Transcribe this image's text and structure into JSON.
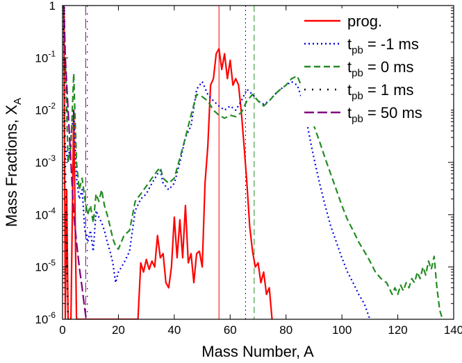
{
  "chart_data": {
    "type": "line",
    "xlabel": "Mass Number, A",
    "ylabel": "Mass Fractions, X",
    "ylabel_sub": "A",
    "xlim": [
      0,
      140
    ],
    "ylim": [
      1e-06,
      1
    ],
    "yscale": "log",
    "x_ticks": [
      0,
      20,
      40,
      60,
      80,
      100,
      120,
      140
    ],
    "y_ticks": [
      {
        "value": 1e-06,
        "base": "10",
        "exp": "-6"
      },
      {
        "value": 1e-05,
        "base": "10",
        "exp": "-5"
      },
      {
        "value": 0.0001,
        "base": "10",
        "exp": "-4"
      },
      {
        "value": 0.001,
        "base": "10",
        "exp": "-3"
      },
      {
        "value": 0.01,
        "base": "10",
        "exp": "-2"
      },
      {
        "value": 0.1,
        "base": "10",
        "exp": "-1"
      },
      {
        "value": 1,
        "base": "1",
        "exp": ""
      }
    ],
    "legend_position": "top-right",
    "series": [
      {
        "name": "prog.",
        "name_main": "prog.",
        "name_sub": "",
        "name_rest": "",
        "color": "#ff0000",
        "dash": "solid",
        "points": [
          [
            0.5,
            1
          ],
          [
            1,
            1e-06
          ],
          [
            1.5,
            0.0003
          ],
          [
            2,
            1e-06
          ],
          [
            3,
            1e-06
          ],
          [
            4,
            0.01
          ],
          [
            5,
            1e-06
          ],
          [
            27,
            1e-06
          ],
          [
            28,
            1.2e-05
          ],
          [
            29,
            8e-06
          ],
          [
            30,
            1.4e-05
          ],
          [
            31,
            9e-06
          ],
          [
            32,
            1.3e-05
          ],
          [
            33,
            1e-05
          ],
          [
            34,
            4e-05
          ],
          [
            35,
            1.5e-05
          ],
          [
            36,
            1.8e-05
          ],
          [
            37,
            5e-06
          ],
          [
            38,
            4e-06
          ],
          [
            39,
            1e-05
          ],
          [
            40,
            9e-05
          ],
          [
            41,
            1.5e-05
          ],
          [
            42,
            8e-05
          ],
          [
            43,
            1.5e-05
          ],
          [
            44,
            0.00015
          ],
          [
            45,
            1.2e-05
          ],
          [
            46,
            1.8e-05
          ],
          [
            47,
            5e-06
          ],
          [
            48,
            1.8e-05
          ],
          [
            49,
            2e-05
          ],
          [
            50,
            1e-05
          ],
          [
            51,
            0.0004
          ],
          [
            52,
            0.002
          ],
          [
            53,
            0.03
          ],
          [
            54,
            0.04
          ],
          [
            55,
            0.12
          ],
          [
            56,
            0.15
          ],
          [
            57,
            0.06
          ],
          [
            58,
            0.12
          ],
          [
            59,
            0.04
          ],
          [
            60,
            0.09
          ],
          [
            61,
            0.03
          ],
          [
            62,
            0.04
          ],
          [
            63,
            0.03
          ],
          [
            64,
            0.009
          ],
          [
            65,
            0.002
          ],
          [
            66,
            0.0004
          ],
          [
            67,
            6e-05
          ],
          [
            68,
            2e-05
          ],
          [
            69,
            1e-05
          ],
          [
            70,
            1.2e-05
          ],
          [
            71,
            5e-06
          ],
          [
            72,
            8e-06
          ],
          [
            73,
            3e-06
          ],
          [
            74,
            4e-06
          ],
          [
            75,
            1e-06
          ]
        ]
      },
      {
        "name": "t_pb = -1 ms",
        "name_main": "t",
        "name_sub": "pb",
        "name_rest": " = -1 ms",
        "color": "#0000dd",
        "dash": "dot",
        "points": [
          [
            1,
            0.002
          ],
          [
            2,
            0.001
          ],
          [
            3,
            0.003
          ],
          [
            4,
            0.01
          ],
          [
            5,
            0.0005
          ],
          [
            6,
            0.0002
          ],
          [
            7,
            0.0003
          ],
          [
            8,
            5e-05
          ],
          [
            9,
            3e-05
          ],
          [
            10,
            5e-05
          ],
          [
            11,
            2e-05
          ],
          [
            12,
            0.00012
          ],
          [
            13,
            9e-05
          ],
          [
            14,
            7e-05
          ],
          [
            15,
            5e-05
          ],
          [
            16,
            3e-05
          ],
          [
            17,
            2e-05
          ],
          [
            18,
            1.2e-05
          ],
          [
            19,
            5e-06
          ],
          [
            20,
            8e-06
          ],
          [
            22,
            1.2e-05
          ],
          [
            24,
            2e-05
          ],
          [
            26,
            0.00012
          ],
          [
            28,
            0.0002
          ],
          [
            30,
            0.00025
          ],
          [
            32,
            0.0004
          ],
          [
            34,
            0.0006
          ],
          [
            35,
            0.0007
          ],
          [
            36,
            0.0004
          ],
          [
            38,
            0.0003
          ],
          [
            40,
            0.0004
          ],
          [
            42,
            0.001
          ],
          [
            44,
            0.003
          ],
          [
            46,
            0.005
          ],
          [
            48,
            0.025
          ],
          [
            50,
            0.035
          ],
          [
            52,
            0.02
          ],
          [
            54,
            0.015
          ],
          [
            56,
            0.012
          ],
          [
            58,
            0.01
          ],
          [
            60,
            0.012
          ],
          [
            62,
            0.01
          ],
          [
            64,
            0.015
          ],
          [
            66,
            0.025
          ],
          [
            68,
            0.02
          ],
          [
            70,
            0.015
          ],
          [
            72,
            0.013
          ],
          [
            74,
            0.015
          ],
          [
            76,
            0.02
          ],
          [
            78,
            0.025
          ],
          [
            80,
            0.03
          ],
          [
            82,
            0.035
          ],
          [
            84,
            0.03
          ],
          [
            86,
            0.015
          ],
          [
            88,
            0.004
          ],
          [
            90,
            0.0012
          ],
          [
            92,
            0.0004
          ],
          [
            94,
            0.00015
          ],
          [
            96,
            6e-05
          ],
          [
            98,
            3e-05
          ],
          [
            100,
            1.5e-05
          ],
          [
            102,
            8e-06
          ],
          [
            104,
            5e-06
          ],
          [
            106,
            3e-06
          ],
          [
            108,
            2e-06
          ],
          [
            110,
            1e-06
          ]
        ]
      },
      {
        "name": "t_pb = 0 ms",
        "name_main": "t",
        "name_sub": "pb",
        "name_rest": " = 0 ms",
        "color": "#228b22",
        "dash": "dash",
        "points": [
          [
            1,
            0.1
          ],
          [
            2,
            0.001
          ],
          [
            3,
            0.002
          ],
          [
            4,
            0.05
          ],
          [
            5,
            0.001
          ],
          [
            6,
            0.0003
          ],
          [
            7,
            0.0005
          ],
          [
            8,
            0.0002
          ],
          [
            9,
            0.0001
          ],
          [
            10,
            0.00015
          ],
          [
            11,
            7e-05
          ],
          [
            12,
            0.00025
          ],
          [
            13,
            0.00018
          ],
          [
            14,
            0.0003
          ],
          [
            15,
            0.00015
          ],
          [
            16,
            0.0001
          ],
          [
            17,
            6e-05
          ],
          [
            18,
            3.5e-05
          ],
          [
            19,
            2.5e-05
          ],
          [
            20,
            2.2e-05
          ],
          [
            22,
            4e-05
          ],
          [
            24,
            5e-05
          ],
          [
            26,
            0.00018
          ],
          [
            28,
            0.00025
          ],
          [
            30,
            0.00035
          ],
          [
            32,
            0.0005
          ],
          [
            34,
            0.0007
          ],
          [
            35,
            0.0008
          ],
          [
            36,
            0.0005
          ],
          [
            38,
            0.0004
          ],
          [
            40,
            0.0005
          ],
          [
            42,
            0.0012
          ],
          [
            44,
            0.003
          ],
          [
            46,
            0.008
          ],
          [
            48,
            0.02
          ],
          [
            50,
            0.018
          ],
          [
            52,
            0.015
          ],
          [
            54,
            0.01
          ],
          [
            56,
            0.008
          ],
          [
            58,
            0.007
          ],
          [
            60,
            0.008
          ],
          [
            62,
            0.0075
          ],
          [
            64,
            0.009
          ],
          [
            66,
            0.015
          ],
          [
            68,
            0.02
          ],
          [
            70,
            0.015
          ],
          [
            72,
            0.012
          ],
          [
            74,
            0.015
          ],
          [
            76,
            0.02
          ],
          [
            78,
            0.025
          ],
          [
            80,
            0.03
          ],
          [
            82,
            0.04
          ],
          [
            84,
            0.045
          ],
          [
            86,
            0.025
          ],
          [
            88,
            0.012
          ],
          [
            90,
            0.005
          ],
          [
            92,
            0.0025
          ],
          [
            94,
            0.0012
          ],
          [
            96,
            0.0006
          ],
          [
            98,
            0.0003
          ],
          [
            100,
            0.00015
          ],
          [
            102,
            8e-05
          ],
          [
            104,
            5e-05
          ],
          [
            106,
            3e-05
          ],
          [
            108,
            2e-05
          ],
          [
            110,
            1.3e-05
          ],
          [
            112,
            8e-06
          ],
          [
            114,
            6e-06
          ],
          [
            116,
            5e-06
          ],
          [
            118,
            3e-06
          ],
          [
            119,
            4e-06
          ],
          [
            120,
            3e-06
          ],
          [
            121,
            4.5e-06
          ],
          [
            122,
            3.5e-06
          ],
          [
            123,
            5e-06
          ],
          [
            124,
            4e-06
          ],
          [
            125,
            6e-06
          ],
          [
            126,
            5e-06
          ],
          [
            127,
            8e-06
          ],
          [
            128,
            6e-06
          ],
          [
            129,
            1e-05
          ],
          [
            130,
            7e-06
          ],
          [
            131,
            1.3e-05
          ],
          [
            132,
            9e-06
          ],
          [
            133,
            1.6e-05
          ],
          [
            134,
            4e-06
          ],
          [
            135,
            1.5e-06
          ],
          [
            136,
            1e-06
          ]
        ]
      },
      {
        "name": "t_pb = 1 ms",
        "name_main": "t",
        "name_sub": "pb",
        "name_rest": " = 1 ms",
        "color": "#000000",
        "dash": "sparsedot",
        "points": [
          [
            0.3,
            1
          ],
          [
            1,
            0.001
          ],
          [
            2,
            1e-06
          ]
        ]
      },
      {
        "name": "t_pb = 50 ms",
        "name_main": "t",
        "name_sub": "pb",
        "name_rest": " = 50 ms",
        "color": "#800080",
        "dash": "longdash",
        "points": [
          [
            0.5,
            1
          ],
          [
            1,
            0.1
          ],
          [
            2,
            0.01
          ],
          [
            3,
            0.001
          ],
          [
            4,
            0.0001
          ],
          [
            5,
            3e-05
          ],
          [
            6,
            1e-05
          ],
          [
            7,
            4e-06
          ],
          [
            8,
            1.5e-06
          ],
          [
            8.5,
            1e-06
          ]
        ]
      }
    ],
    "vlines": [
      {
        "x": 8.3,
        "color": "#800080",
        "dash": "longdash"
      },
      {
        "x": 8.9,
        "color": "#000000",
        "dash": "sparsedot"
      },
      {
        "x": 56,
        "color": "#ff0000",
        "dash": "solid"
      },
      {
        "x": 65.5,
        "color": "#0000dd",
        "dash": "dot"
      },
      {
        "x": 68.6,
        "color": "#228b22",
        "dash": "dash"
      }
    ]
  }
}
